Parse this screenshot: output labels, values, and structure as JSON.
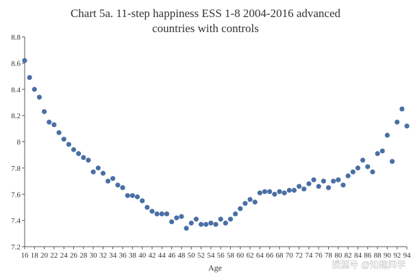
{
  "chart_data": {
    "type": "scatter",
    "title_lines": [
      "Chart 5a.  11-step happiness ESS 1-8 2004-2016 advanced",
      "countries with controls"
    ],
    "xlabel": "Age",
    "ylabel": "",
    "xlim": [
      16,
      94
    ],
    "ylim": [
      7.2,
      8.8
    ],
    "y_ticks": [
      "7.2",
      "7.4",
      "7.6",
      "7.8",
      "8",
      "8.2",
      "8.4",
      "8.6",
      "8.8"
    ],
    "x_ticks": [
      "16",
      "18",
      "20",
      "22",
      "24",
      "26",
      "28",
      "30",
      "32",
      "34",
      "36",
      "38",
      "40",
      "42",
      "44",
      "46",
      "48",
      "50",
      "52",
      "54",
      "56",
      "58",
      "60",
      "62",
      "64",
      "66",
      "68",
      "70",
      "72",
      "74",
      "76",
      "78",
      "80",
      "82",
      "84",
      "86",
      "88",
      "90",
      "92",
      "94"
    ],
    "grid": false,
    "legend": "none",
    "marker_color": "#4a6fa5",
    "points": [
      [
        16,
        8.62
      ],
      [
        17,
        8.49
      ],
      [
        18,
        8.4
      ],
      [
        19,
        8.34
      ],
      [
        20,
        8.23
      ],
      [
        21,
        8.15
      ],
      [
        22,
        8.13
      ],
      [
        23,
        8.07
      ],
      [
        24,
        8.02
      ],
      [
        25,
        7.98
      ],
      [
        26,
        7.94
      ],
      [
        27,
        7.91
      ],
      [
        28,
        7.88
      ],
      [
        29,
        7.86
      ],
      [
        30,
        7.77
      ],
      [
        31,
        7.8
      ],
      [
        32,
        7.76
      ],
      [
        33,
        7.7
      ],
      [
        34,
        7.72
      ],
      [
        35,
        7.67
      ],
      [
        36,
        7.65
      ],
      [
        37,
        7.59
      ],
      [
        38,
        7.59
      ],
      [
        39,
        7.58
      ],
      [
        40,
        7.55
      ],
      [
        41,
        7.5
      ],
      [
        42,
        7.47
      ],
      [
        43,
        7.45
      ],
      [
        44,
        7.45
      ],
      [
        45,
        7.45
      ],
      [
        46,
        7.39
      ],
      [
        47,
        7.42
      ],
      [
        48,
        7.43
      ],
      [
        49,
        7.34
      ],
      [
        50,
        7.38
      ],
      [
        51,
        7.41
      ],
      [
        52,
        7.37
      ],
      [
        53,
        7.37
      ],
      [
        54,
        7.38
      ],
      [
        55,
        7.37
      ],
      [
        56,
        7.41
      ],
      [
        57,
        7.38
      ],
      [
        58,
        7.41
      ],
      [
        59,
        7.45
      ],
      [
        60,
        7.49
      ],
      [
        61,
        7.53
      ],
      [
        62,
        7.56
      ],
      [
        63,
        7.54
      ],
      [
        64,
        7.61
      ],
      [
        65,
        7.62
      ],
      [
        66,
        7.62
      ],
      [
        67,
        7.6
      ],
      [
        68,
        7.62
      ],
      [
        69,
        7.61
      ],
      [
        70,
        7.63
      ],
      [
        71,
        7.63
      ],
      [
        72,
        7.66
      ],
      [
        73,
        7.64
      ],
      [
        74,
        7.68
      ],
      [
        75,
        7.71
      ],
      [
        76,
        7.66
      ],
      [
        77,
        7.7
      ],
      [
        78,
        7.65
      ],
      [
        79,
        7.7
      ],
      [
        80,
        7.71
      ],
      [
        81,
        7.67
      ],
      [
        82,
        7.74
      ],
      [
        83,
        7.77
      ],
      [
        84,
        7.8
      ],
      [
        85,
        7.86
      ],
      [
        86,
        7.81
      ],
      [
        87,
        7.77
      ],
      [
        88,
        7.91
      ],
      [
        89,
        7.93
      ],
      [
        90,
        8.05
      ],
      [
        91,
        7.85
      ],
      [
        92,
        8.15
      ],
      [
        93,
        8.25
      ],
      [
        94,
        8.12
      ]
    ]
  },
  "watermark": {
    "text": "搜狐号 @知趣同学"
  }
}
